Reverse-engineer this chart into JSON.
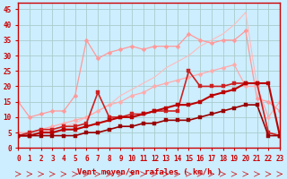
{
  "xlabel": "Vent moyen/en rafales ( km/h )",
  "background_color": "#cceeff",
  "grid_color": "#aacccc",
  "x": [
    0,
    1,
    2,
    3,
    4,
    5,
    6,
    7,
    8,
    9,
    10,
    11,
    12,
    13,
    14,
    15,
    16,
    17,
    18,
    19,
    20,
    21,
    22,
    23
  ],
  "ylim": [
    0,
    47
  ],
  "xlim": [
    0,
    23
  ],
  "series": [
    {
      "color": "#ffbbbb",
      "linewidth": 0.8,
      "marker": null,
      "markersize": 0,
      "data": [
        4,
        4,
        5,
        6,
        7,
        8,
        10,
        12,
        14,
        17,
        19,
        21,
        23,
        26,
        28,
        30,
        33,
        35,
        37,
        40,
        44,
        20,
        5,
        4
      ]
    },
    {
      "color": "#ff9999",
      "linewidth": 0.9,
      "marker": "D",
      "markersize": 2.5,
      "data": [
        15,
        10,
        11,
        12,
        12,
        17,
        35,
        29,
        31,
        32,
        33,
        32,
        33,
        33,
        33,
        37,
        35,
        34,
        35,
        35,
        38,
        16,
        15,
        12
      ]
    },
    {
      "color": "#ffaaaa",
      "linewidth": 0.9,
      "marker": "D",
      "markersize": 2.5,
      "data": [
        5,
        5,
        6,
        7,
        8,
        9,
        10,
        12,
        14,
        15,
        17,
        18,
        20,
        21,
        22,
        23,
        24,
        25,
        26,
        27,
        20,
        20,
        10,
        15
      ]
    },
    {
      "color": "#cc2222",
      "linewidth": 1.2,
      "marker": "s",
      "markersize": 2.5,
      "data": [
        4,
        5,
        6,
        6,
        7,
        7,
        8,
        18,
        10,
        10,
        11,
        11,
        12,
        12,
        12,
        25,
        20,
        20,
        20,
        21,
        21,
        21,
        5,
        4
      ]
    },
    {
      "color": "#bb0000",
      "linewidth": 1.5,
      "marker": "s",
      "markersize": 2.5,
      "data": [
        4,
        4,
        5,
        5,
        6,
        6,
        7,
        8,
        9,
        10,
        10,
        11,
        12,
        13,
        14,
        14,
        15,
        17,
        18,
        19,
        21,
        21,
        21,
        4
      ]
    },
    {
      "color": "#990000",
      "linewidth": 1.2,
      "marker": "s",
      "markersize": 2.5,
      "data": [
        4,
        4,
        4,
        4,
        4,
        4,
        5,
        5,
        6,
        7,
        7,
        8,
        8,
        9,
        9,
        9,
        10,
        11,
        12,
        13,
        14,
        14,
        4,
        4
      ]
    }
  ],
  "axis_color": "#cc0000",
  "tick_color": "#cc0000",
  "label_color": "#cc0000",
  "tick_fontsize": 5.5,
  "xlabel_fontsize": 6.5
}
